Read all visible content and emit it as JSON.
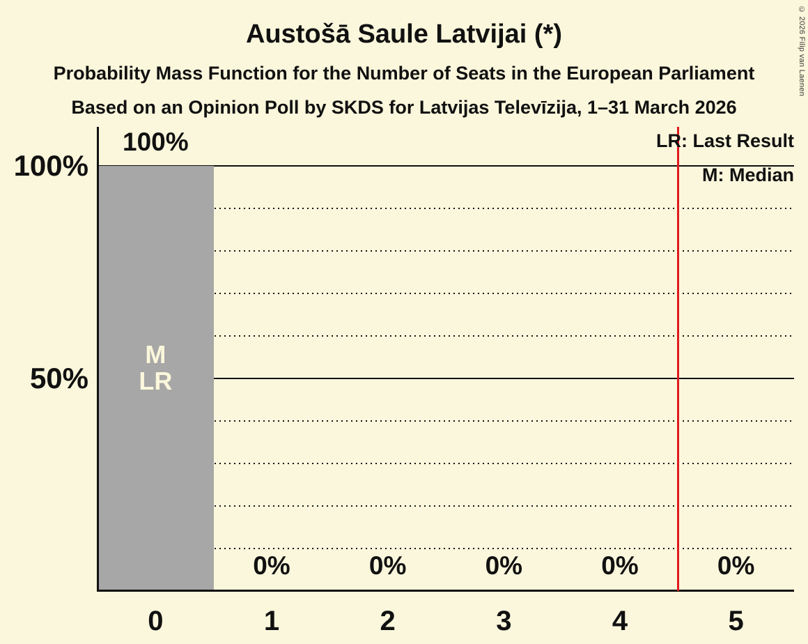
{
  "title": "Austošā Saule Latvijai (*)",
  "subtitle": "Probability Mass Function for the Number of Seats in the European Parliament",
  "poll_info": "Based on an Opinion Poll by SKDS for Latvijas Televīzija, 1–31 March 2026",
  "copyright": "© 2026 Filip van Laenen",
  "legend": {
    "last_result": "LR: Last Result",
    "median": "M: Median"
  },
  "colors": {
    "background": "#FBF7DC",
    "bar": "#A7A7A7",
    "text": "#111111",
    "bar_label_text": "#FBF7DC",
    "reference_line": "#E0191D",
    "copyright_text": "#3A3A3A"
  },
  "chart_data": {
    "type": "bar",
    "title": "Austošā Saule Latvijai (*)",
    "categories": [
      "0",
      "1",
      "2",
      "3",
      "4",
      "5"
    ],
    "values": [
      100,
      0,
      0,
      0,
      0,
      0
    ],
    "value_labels": [
      "100%",
      "0%",
      "0%",
      "0%",
      "0%",
      "0%"
    ],
    "ylim": [
      0,
      100
    ],
    "y_ticks": [
      {
        "value": 100,
        "label": "100%"
      },
      {
        "value": 50,
        "label": "50%"
      }
    ],
    "grid": {
      "dotted_every": 10,
      "solid_values": [
        50,
        100
      ]
    },
    "bar_annotations": [
      {
        "category_index": 0,
        "lines": [
          "M",
          "LR"
        ]
      }
    ],
    "median_seats": 0,
    "last_result_seats": 0,
    "vline_x": 4.5,
    "legend_position": "top-right"
  }
}
